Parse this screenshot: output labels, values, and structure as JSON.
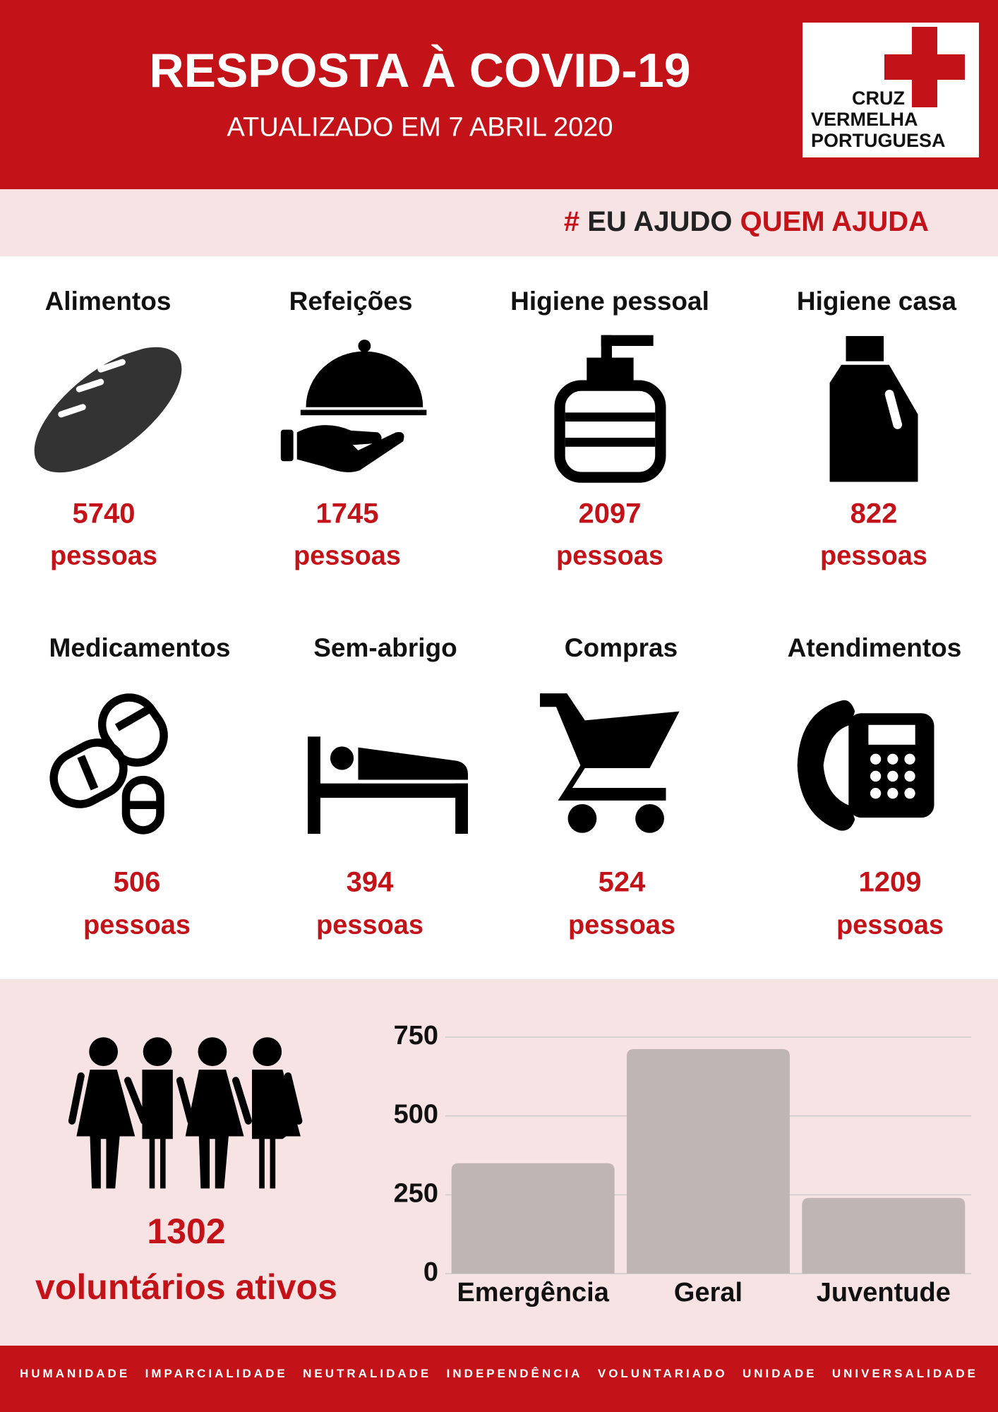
{
  "header": {
    "title": "RESPOSTA À COVID-19",
    "subtitle": "ATUALIZADO EM 7 ABRIL 2020",
    "logo": [
      "CRUZ",
      "VERMELHA",
      "PORTUGUESA"
    ]
  },
  "hashtag": {
    "symbol": "#",
    "first": "EU AJUDO",
    "second": "QUEM AJUDA"
  },
  "stats": [
    {
      "label": "Alimentos",
      "value": 5740,
      "unit": "pessoas"
    },
    {
      "label": "Refeições",
      "value": 1745,
      "unit": "pessoas"
    },
    {
      "label": "Higiene pessoal",
      "value": 2097,
      "unit": "pessoas"
    },
    {
      "label": "Higiene casa",
      "value": 822,
      "unit": "pessoas"
    },
    {
      "label": "Medicamentos",
      "value": 506,
      "unit": "pessoas"
    },
    {
      "label": "Sem-abrigo",
      "value": 394,
      "unit": "pessoas"
    },
    {
      "label": "Compras",
      "value": 524,
      "unit": "pessoas"
    },
    {
      "label": "Atendimentos",
      "value": 1209,
      "unit": "pessoas"
    }
  ],
  "volunteers": {
    "value": 1302,
    "label": "voluntários ativos"
  },
  "chart_data": {
    "type": "bar",
    "categories": [
      "Emergência",
      "Geral",
      "Juventude"
    ],
    "values": [
      350,
      712,
      240
    ],
    "color": "#bfb5b3",
    "ylim": [
      0,
      750
    ],
    "yticks": [
      0,
      250,
      500,
      750
    ],
    "grid": true
  },
  "footer": [
    "HUMANIDADE",
    "IMPARCIALIDADE",
    "NEUTRALIDADE",
    "INDEPENDÊNCIA",
    "VOLUNTARIADO",
    "UNIDADE",
    "UNIVERSALIDADE"
  ]
}
